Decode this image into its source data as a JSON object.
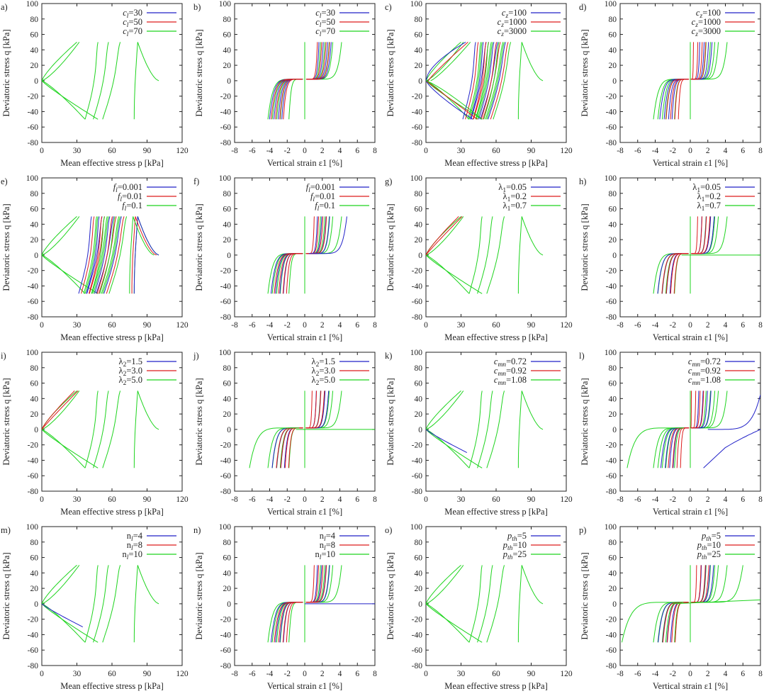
{
  "colors": {
    "c1": "#2222c8",
    "c2": "#dd1c1c",
    "c3": "#1ed41e"
  },
  "axes": {
    "p": {
      "xlabel": "Mean effective stress p [kPa]",
      "ylabel": "Deviatoric stress q [kPa]",
      "xticks": [
        "0",
        "30",
        "60",
        "90",
        "120"
      ],
      "yticks": [
        "100",
        "80",
        "60",
        "40",
        "20",
        "0",
        "-20",
        "-40",
        "-60",
        "-80"
      ]
    },
    "e": {
      "xlabel": "Vertical strain ε1 [%]",
      "ylabel": "Deviatoric stress q [kPa]",
      "xticks": [
        "-8",
        "-6",
        "-4",
        "-2",
        "0",
        "2",
        "4",
        "6",
        "8"
      ],
      "yticks": [
        "100",
        "80",
        "60",
        "40",
        "20",
        "0",
        "-20",
        "-40",
        "-60",
        "-80"
      ]
    }
  },
  "chart_data": [
    {
      "id": "a",
      "label": "a)",
      "type": "line",
      "kind": "p",
      "legend": [
        "cl=30",
        "cl=50",
        "cl=70"
      ],
      "xlim": [
        0,
        120
      ],
      "ylim": [
        -80,
        100
      ]
    },
    {
      "id": "b",
      "label": "b)",
      "type": "line",
      "kind": "e",
      "legend": [
        "cl=30",
        "cl=50",
        "cl=70"
      ],
      "xlim": [
        -8,
        8
      ],
      "ylim": [
        -80,
        100
      ]
    },
    {
      "id": "c",
      "label": "c)",
      "type": "line",
      "kind": "p",
      "legend": [
        "cz=100",
        "cz=1000",
        "cz=3000"
      ],
      "xlim": [
        0,
        120
      ],
      "ylim": [
        -80,
        100
      ]
    },
    {
      "id": "d",
      "label": "d)",
      "type": "line",
      "kind": "e",
      "legend": [
        "cz=100",
        "cz=1000",
        "cz=3000"
      ],
      "xlim": [
        -8,
        8
      ],
      "ylim": [
        -80,
        100
      ]
    },
    {
      "id": "e",
      "label": "e)",
      "type": "line",
      "kind": "p",
      "legend": [
        "fl=0.001",
        "fl=0.01",
        "fl=0.1"
      ],
      "xlim": [
        0,
        120
      ],
      "ylim": [
        -80,
        100
      ]
    },
    {
      "id": "f",
      "label": "f)",
      "type": "line",
      "kind": "e",
      "legend": [
        "fl=0.001",
        "fl=0.01",
        "fl=0.1"
      ],
      "xlim": [
        -8,
        8
      ],
      "ylim": [
        -80,
        100
      ]
    },
    {
      "id": "g",
      "label": "g)",
      "type": "line",
      "kind": "p",
      "legend": [
        "λ1=0.05",
        "λ1=0.2",
        "λ1=0.7"
      ],
      "xlim": [
        0,
        120
      ],
      "ylim": [
        -80,
        100
      ]
    },
    {
      "id": "h",
      "label": "h)",
      "type": "line",
      "kind": "e",
      "legend": [
        "λ1=0.05",
        "λ1=0.2",
        "λ1=0.7"
      ],
      "xlim": [
        -8,
        8
      ],
      "ylim": [
        -80,
        100
      ]
    },
    {
      "id": "i",
      "label": "i)",
      "type": "line",
      "kind": "p",
      "legend": [
        "λ2=1.5",
        "λ2=3.0",
        "λ2=5.0"
      ],
      "xlim": [
        0,
        120
      ],
      "ylim": [
        -80,
        100
      ]
    },
    {
      "id": "j",
      "label": "j)",
      "type": "line",
      "kind": "e",
      "legend": [
        "λ2=1.5",
        "λ2=3.0",
        "λ2=5.0"
      ],
      "xlim": [
        -8,
        8
      ],
      "ylim": [
        -80,
        100
      ]
    },
    {
      "id": "k",
      "label": "k)",
      "type": "line",
      "kind": "p",
      "legend": [
        "cmn=0.72",
        "cmn=0.92",
        "cmn=1.08"
      ],
      "xlim": [
        0,
        120
      ],
      "ylim": [
        -80,
        100
      ]
    },
    {
      "id": "l",
      "label": "l)",
      "type": "line",
      "kind": "e",
      "legend": [
        "cmn=0.72",
        "cmn=0.92",
        "cmn=1.08"
      ],
      "xlim": [
        -8,
        8
      ],
      "ylim": [
        -80,
        100
      ]
    },
    {
      "id": "m",
      "label": "m)",
      "type": "line",
      "kind": "p",
      "legend": [
        "nl=4",
        "nl=8",
        "nl=10"
      ],
      "xlim": [
        0,
        120
      ],
      "ylim": [
        -80,
        100
      ]
    },
    {
      "id": "n",
      "label": "n)",
      "type": "line",
      "kind": "e",
      "legend": [
        "nl=4",
        "nl=8",
        "nl=10"
      ],
      "xlim": [
        -8,
        8
      ],
      "ylim": [
        -80,
        100
      ]
    },
    {
      "id": "o",
      "label": "o)",
      "type": "line",
      "kind": "p",
      "legend": [
        "pth=5",
        "pth=10",
        "pth=25"
      ],
      "xlim": [
        0,
        120
      ],
      "ylim": [
        -80,
        100
      ]
    },
    {
      "id": "p",
      "label": "p)",
      "type": "line",
      "kind": "e",
      "legend": [
        "pth=5",
        "pth=10",
        "pth=25"
      ],
      "xlim": [
        -8,
        8
      ],
      "ylim": [
        -80,
        100
      ]
    }
  ]
}
